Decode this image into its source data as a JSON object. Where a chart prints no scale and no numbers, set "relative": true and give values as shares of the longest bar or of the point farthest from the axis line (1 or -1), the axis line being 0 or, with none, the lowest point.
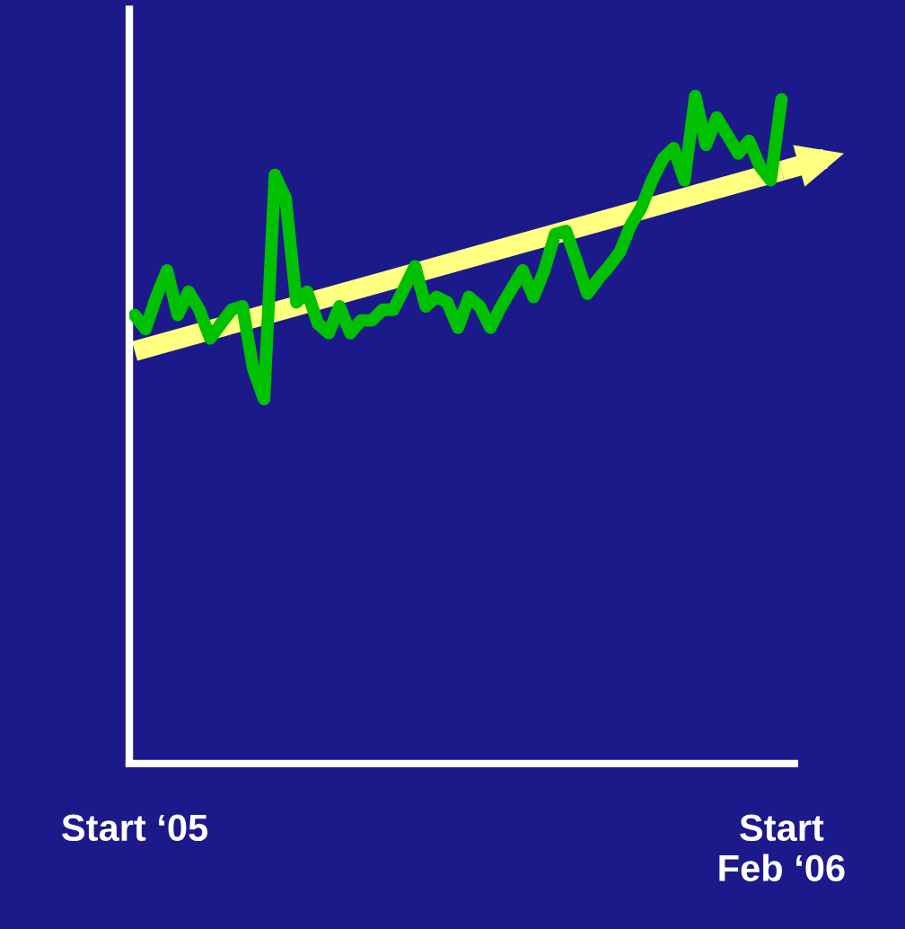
{
  "chart_data": {
    "type": "line",
    "relative": true,
    "categories": [
      "Start ‘05",
      null,
      null,
      null,
      null,
      null,
      null,
      null,
      null,
      null,
      null,
      null,
      null,
      null,
      null,
      null,
      null,
      null,
      null,
      null,
      null,
      null,
      null,
      null,
      null,
      null,
      null,
      null,
      null,
      null,
      null,
      null,
      null,
      null,
      null,
      null,
      null,
      null,
      null,
      null,
      null,
      null,
      null,
      null,
      null,
      null,
      null,
      null,
      null,
      null,
      null,
      null,
      null,
      null,
      null,
      null,
      null,
      null,
      null,
      null,
      "Start\nFeb ‘06"
    ],
    "series": [
      {
        "color": "#00c000",
        "values": [
          0.672,
          0.651,
          0.699,
          0.739,
          0.672,
          0.707,
          0.68,
          0.637,
          0.659,
          0.68,
          0.685,
          0.591,
          0.546,
          0.882,
          0.847,
          0.691,
          0.707,
          0.659,
          0.645,
          0.685,
          0.645,
          0.664,
          0.664,
          0.68,
          0.68,
          0.712,
          0.745,
          0.685,
          0.699,
          0.691,
          0.653,
          0.699,
          0.685,
          0.653,
          0.685,
          0.712,
          0.739,
          0.699,
          0.739,
          0.793,
          0.798,
          0.753,
          0.704,
          0.726,
          0.745,
          0.766,
          0.806,
          0.833,
          0.874,
          0.906,
          0.922,
          0.874,
          1.0,
          0.927,
          0.968,
          0.941,
          0.914,
          0.933,
          0.895,
          0.874,
          0.995
        ]
      },
      {
        "type": "line",
        "color": "#ffff80",
        "values": [
          0.618,
          null,
          null,
          null,
          null,
          null,
          null,
          null,
          null,
          null,
          null,
          null,
          null,
          null,
          null,
          null,
          null,
          null,
          null,
          null,
          null,
          null,
          null,
          null,
          null,
          null,
          null,
          null,
          null,
          null,
          null,
          null,
          null,
          null,
          null,
          null,
          null,
          null,
          null,
          null,
          null,
          null,
          null,
          null,
          null,
          null,
          null,
          null,
          null,
          null,
          null,
          null,
          null,
          null,
          null,
          null,
          null,
          null,
          null,
          null,
          0.888
        ]
      }
    ],
    "grid": false,
    "legend": false,
    "marker": "none",
    "line_style": "solid"
  }
}
